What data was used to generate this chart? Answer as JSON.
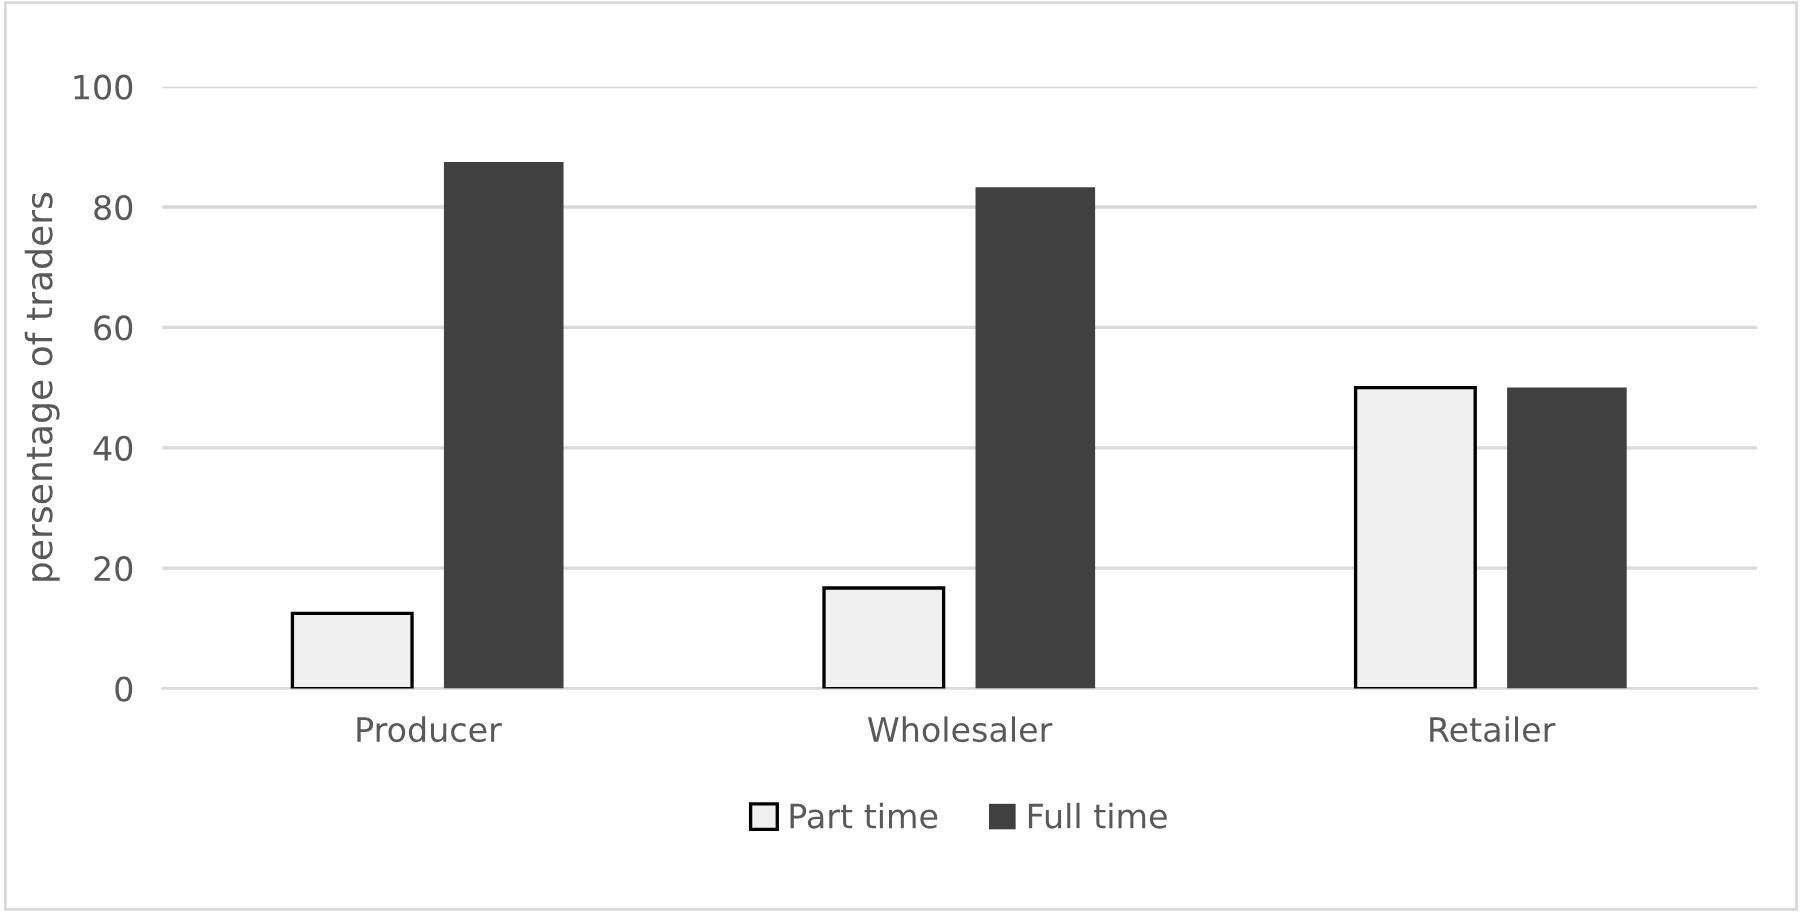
{
  "chart_data": {
    "type": "bar",
    "ylabel": "persentage of traders",
    "categories": [
      "Producer",
      "Wholesaler",
      "Retailer"
    ],
    "series": [
      {
        "name": "Part time",
        "color": "#f0f0f0",
        "values": [
          12.5,
          16.7,
          50
        ]
      },
      {
        "name": "Full time",
        "color": "#404040",
        "values": [
          87.5,
          83.3,
          50
        ]
      }
    ],
    "ylim": [
      0,
      100
    ],
    "yticks": [
      0,
      20,
      40,
      60,
      80,
      100
    ],
    "grid": "y",
    "legend": "bottom"
  }
}
